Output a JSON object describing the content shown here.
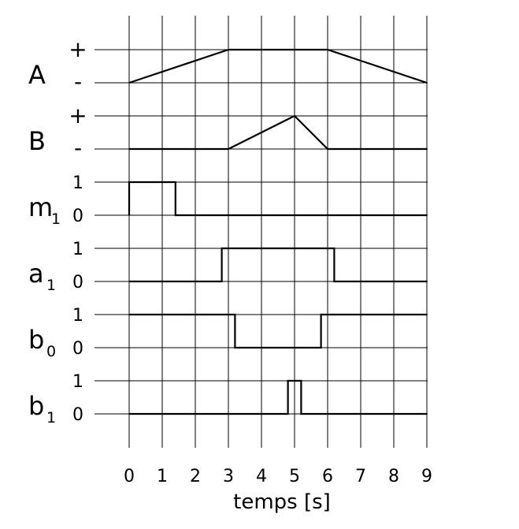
{
  "axis": {
    "title": "temps [s]",
    "ticks": [
      "0",
      "1",
      "2",
      "3",
      "4",
      "5",
      "6",
      "7",
      "8",
      "9"
    ],
    "x_min": 0,
    "x_max": 9
  },
  "signals": [
    {
      "id": "A",
      "name": "A",
      "sub": "",
      "high_label": "+",
      "low_label": "-",
      "points": [
        [
          0,
          0
        ],
        [
          3,
          1
        ],
        [
          6,
          1
        ],
        [
          9,
          0
        ]
      ]
    },
    {
      "id": "B",
      "name": "B",
      "sub": "",
      "high_label": "+",
      "low_label": "-",
      "points": [
        [
          0,
          0
        ],
        [
          3,
          0
        ],
        [
          5,
          1
        ],
        [
          6,
          0
        ],
        [
          9,
          0
        ]
      ]
    },
    {
      "id": "m1",
      "name": "m",
      "sub": "1",
      "high_label": "1",
      "low_label": "0",
      "points": [
        [
          0,
          0
        ],
        [
          0,
          1
        ],
        [
          1.4,
          1
        ],
        [
          1.4,
          0
        ],
        [
          9,
          0
        ]
      ]
    },
    {
      "id": "a1",
      "name": "a",
      "sub": "1",
      "high_label": "1",
      "low_label": "0",
      "points": [
        [
          0,
          0
        ],
        [
          2.8,
          0
        ],
        [
          2.8,
          1
        ],
        [
          6.2,
          1
        ],
        [
          6.2,
          0
        ],
        [
          9,
          0
        ]
      ]
    },
    {
      "id": "b0",
      "name": "b",
      "sub": "0",
      "high_label": "1",
      "low_label": "0",
      "points": [
        [
          0,
          1
        ],
        [
          3.2,
          1
        ],
        [
          3.2,
          0
        ],
        [
          5.8,
          0
        ],
        [
          5.8,
          1
        ],
        [
          9,
          1
        ]
      ]
    },
    {
      "id": "b1",
      "name": "b",
      "sub": "1",
      "high_label": "1",
      "low_label": "0",
      "points": [
        [
          0,
          0
        ],
        [
          4.8,
          0
        ],
        [
          4.8,
          1
        ],
        [
          5.2,
          1
        ],
        [
          5.2,
          0
        ],
        [
          9,
          0
        ]
      ]
    }
  ]
}
